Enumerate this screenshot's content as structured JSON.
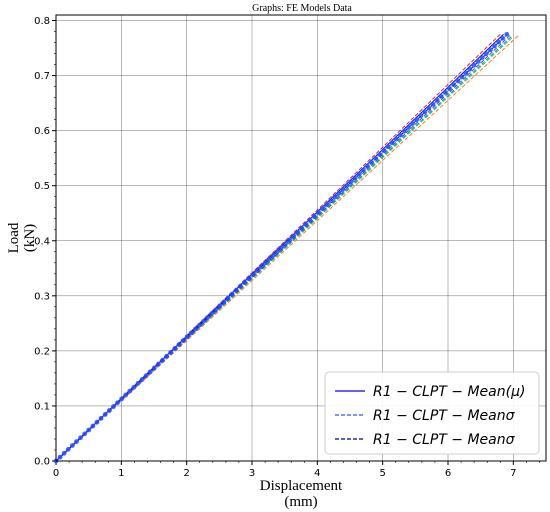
{
  "chart_data": {
    "type": "line",
    "title": "Graphs: FE Models Data",
    "xlabel": "Displacement",
    "xlabel_unit": "(mm)",
    "ylabel": "Load",
    "ylabel_unit": "(kN)",
    "xlim": [
      0,
      7.5
    ],
    "ylim": [
      0,
      0.81
    ],
    "xticks": [
      0,
      1,
      2,
      3,
      4,
      5,
      6,
      7
    ],
    "yticks": [
      0.0,
      0.1,
      0.2,
      0.3,
      0.4,
      0.5,
      0.6,
      0.7,
      0.8
    ],
    "grid": true,
    "legend_position": "bottom-right",
    "series": [
      {
        "name": "R1 − CLPT − Mean(μ)",
        "style": "solid",
        "color": "#0000ff",
        "x": [
          0,
          6.85
        ],
        "y": [
          0,
          0.775
        ]
      },
      {
        "name": "R1 − CLPT − Meanσ",
        "style": "dashed",
        "color": "#3050ff",
        "x": [
          0,
          6.95
        ],
        "y": [
          0,
          0.773
        ]
      },
      {
        "name": "R1 − CLPT − Meanσ",
        "style": "dashed",
        "color": "#00008b",
        "x": [
          0,
          6.9
        ],
        "y": [
          0,
          0.774
        ]
      },
      {
        "name": "",
        "style": "dashed",
        "color": "#ff7f0e",
        "x": [
          0,
          7.08
        ],
        "y": [
          0,
          0.773
        ]
      },
      {
        "name": "",
        "style": "dashed",
        "color": "#2ca02c",
        "x": [
          0,
          6.98
        ],
        "y": [
          0,
          0.772
        ]
      },
      {
        "name": "",
        "style": "dashed",
        "color": "#d62728",
        "x": [
          0,
          6.8
        ],
        "y": [
          0,
          0.775
        ]
      },
      {
        "name": "",
        "style": "dashed",
        "color": "#17becf",
        "x": [
          0,
          7.0
        ],
        "y": [
          0,
          0.771
        ]
      }
    ],
    "marker_series": {
      "color": "#1f4fff",
      "x": [
        0,
        6.9
      ],
      "y": [
        0,
        0.775
      ]
    }
  }
}
